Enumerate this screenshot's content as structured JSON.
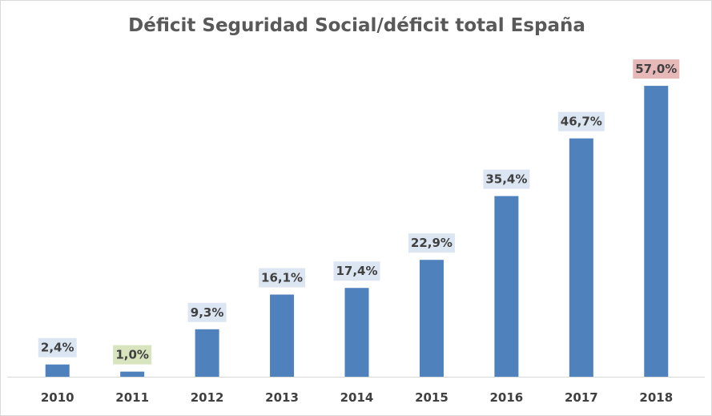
{
  "chart_data": {
    "type": "bar",
    "title": "Déficit Seguridad Social/déficit total España",
    "xlabel": "",
    "ylabel": "",
    "ylim": [
      0,
      60
    ],
    "grid": false,
    "legend": "none",
    "categories": [
      "2010",
      "2011",
      "2012",
      "2013",
      "2014",
      "2015",
      "2016",
      "2017",
      "2018"
    ],
    "values": [
      2.4,
      1.0,
      9.3,
      16.1,
      17.4,
      22.9,
      35.4,
      46.7,
      57.0
    ],
    "data_labels": [
      "2,4%",
      "1,0%",
      "9,3%",
      "16,1%",
      "17,4%",
      "22,9%",
      "35,4%",
      "46,7%",
      "57,0%"
    ],
    "label_fills": [
      "#dce6f2",
      "#d7e4bd",
      "#dce6f2",
      "#dce6f2",
      "#dce6f2",
      "#dce6f2",
      "#dce6f2",
      "#dce6f2",
      "#e6b9b8"
    ]
  },
  "colors": {
    "bar": "#4f81bd",
    "text": "#404040",
    "title": "#595959",
    "axis": "#d9d9d9"
  }
}
